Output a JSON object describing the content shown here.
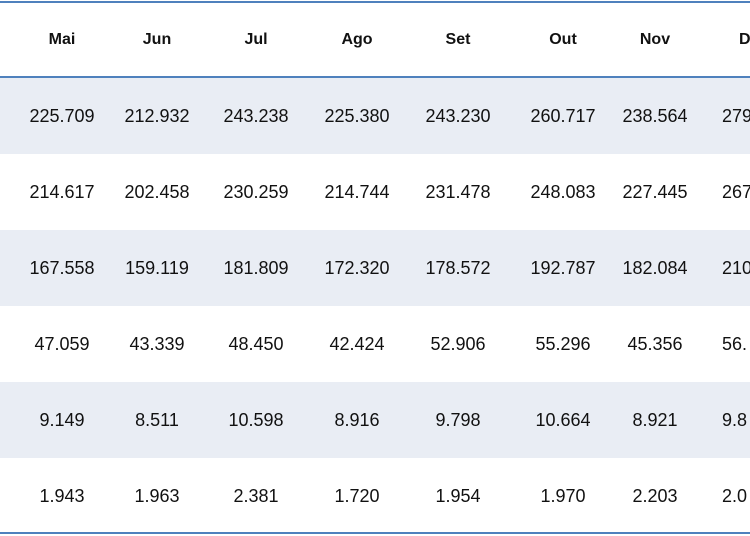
{
  "table": {
    "headers": [
      "Mai",
      "Jun",
      "Jul",
      "Ago",
      "Set",
      "Out",
      "Nov"
    ],
    "header_partial": "D",
    "rows": [
      {
        "values": [
          "225.709",
          "212.932",
          "243.238",
          "225.380",
          "243.230",
          "260.717",
          "238.564"
        ],
        "partial": "279"
      },
      {
        "values": [
          "214.617",
          "202.458",
          "230.259",
          "214.744",
          "231.478",
          "248.083",
          "227.445"
        ],
        "partial": "267"
      },
      {
        "values": [
          "167.558",
          "159.119",
          "181.809",
          "172.320",
          "178.572",
          "192.787",
          "182.084"
        ],
        "partial": "210"
      },
      {
        "values": [
          "47.059",
          "43.339",
          "48.450",
          "42.424",
          "52.906",
          "55.296",
          "45.356"
        ],
        "partial": "56."
      },
      {
        "values": [
          "9.149",
          "8.511",
          "10.598",
          "8.916",
          "9.798",
          "10.664",
          "8.921"
        ],
        "partial": "9.8"
      },
      {
        "values": [
          "1.943",
          "1.963",
          "2.381",
          "1.720",
          "1.954",
          "1.970",
          "2.203"
        ],
        "partial": "2.0"
      }
    ]
  },
  "colors": {
    "border": "#4f81bd",
    "band": "#e9edf4"
  }
}
